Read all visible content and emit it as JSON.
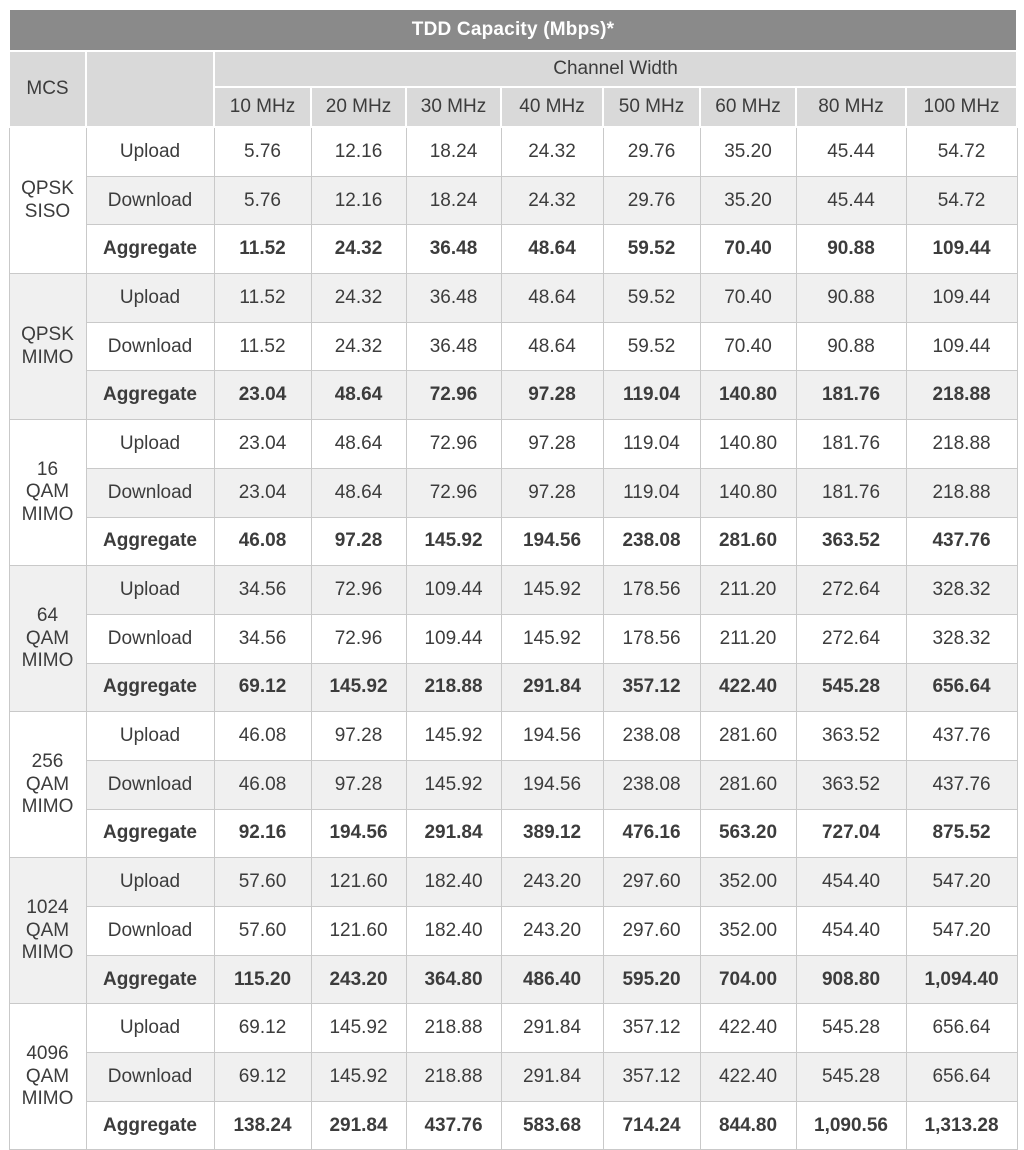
{
  "title": "TDD Capacity (Mbps)*",
  "table": {
    "mcs_header": "MCS",
    "channel_width_header": "Channel Width",
    "channel_columns": [
      "10 MHz",
      "20 MHz",
      "30 MHz",
      "40 MHz",
      "50 MHz",
      "60 MHz",
      "80 MHz",
      "100 MHz"
    ],
    "row_labels": {
      "upload": "Upload",
      "download": "Download",
      "aggregate": "Aggregate"
    },
    "groups": [
      {
        "mcs_lines": [
          "QPSK",
          "SISO"
        ],
        "upload": [
          "5.76",
          "12.16",
          "18.24",
          "24.32",
          "29.76",
          "35.20",
          "45.44",
          "54.72"
        ],
        "download": [
          "5.76",
          "12.16",
          "18.24",
          "24.32",
          "29.76",
          "35.20",
          "45.44",
          "54.72"
        ],
        "aggregate": [
          "11.52",
          "24.32",
          "36.48",
          "48.64",
          "59.52",
          "70.40",
          "90.88",
          "109.44"
        ]
      },
      {
        "mcs_lines": [
          "QPSK",
          "MIMO"
        ],
        "upload": [
          "11.52",
          "24.32",
          "36.48",
          "48.64",
          "59.52",
          "70.40",
          "90.88",
          "109.44"
        ],
        "download": [
          "11.52",
          "24.32",
          "36.48",
          "48.64",
          "59.52",
          "70.40",
          "90.88",
          "109.44"
        ],
        "aggregate": [
          "23.04",
          "48.64",
          "72.96",
          "97.28",
          "119.04",
          "140.80",
          "181.76",
          "218.88"
        ]
      },
      {
        "mcs_lines": [
          "16",
          "QAM",
          "MIMO"
        ],
        "upload": [
          "23.04",
          "48.64",
          "72.96",
          "97.28",
          "119.04",
          "140.80",
          "181.76",
          "218.88"
        ],
        "download": [
          "23.04",
          "48.64",
          "72.96",
          "97.28",
          "119.04",
          "140.80",
          "181.76",
          "218.88"
        ],
        "aggregate": [
          "46.08",
          "97.28",
          "145.92",
          "194.56",
          "238.08",
          "281.60",
          "363.52",
          "437.76"
        ]
      },
      {
        "mcs_lines": [
          "64",
          "QAM",
          "MIMO"
        ],
        "upload": [
          "34.56",
          "72.96",
          "109.44",
          "145.92",
          "178.56",
          "211.20",
          "272.64",
          "328.32"
        ],
        "download": [
          "34.56",
          "72.96",
          "109.44",
          "145.92",
          "178.56",
          "211.20",
          "272.64",
          "328.32"
        ],
        "aggregate": [
          "69.12",
          "145.92",
          "218.88",
          "291.84",
          "357.12",
          "422.40",
          "545.28",
          "656.64"
        ]
      },
      {
        "mcs_lines": [
          "256",
          "QAM",
          "MIMO"
        ],
        "upload": [
          "46.08",
          "97.28",
          "145.92",
          "194.56",
          "238.08",
          "281.60",
          "363.52",
          "437.76"
        ],
        "download": [
          "46.08",
          "97.28",
          "145.92",
          "194.56",
          "238.08",
          "281.60",
          "363.52",
          "437.76"
        ],
        "aggregate": [
          "92.16",
          "194.56",
          "291.84",
          "389.12",
          "476.16",
          "563.20",
          "727.04",
          "875.52"
        ]
      },
      {
        "mcs_lines": [
          "1024",
          "QAM",
          "MIMO"
        ],
        "upload": [
          "57.60",
          "121.60",
          "182.40",
          "243.20",
          "297.60",
          "352.00",
          "454.40",
          "547.20"
        ],
        "download": [
          "57.60",
          "121.60",
          "182.40",
          "243.20",
          "297.60",
          "352.00",
          "454.40",
          "547.20"
        ],
        "aggregate": [
          "115.20",
          "243.20",
          "364.80",
          "486.40",
          "595.20",
          "704.00",
          "908.80",
          "1,094.40"
        ]
      },
      {
        "mcs_lines": [
          "4096",
          "QAM",
          "MIMO"
        ],
        "upload": [
          "69.12",
          "145.92",
          "218.88",
          "291.84",
          "357.12",
          "422.40",
          "545.28",
          "656.64"
        ],
        "download": [
          "69.12",
          "145.92",
          "218.88",
          "291.84",
          "357.12",
          "422.40",
          "545.28",
          "656.64"
        ],
        "aggregate": [
          "138.24",
          "291.84",
          "437.76",
          "583.68",
          "714.24",
          "844.80",
          "1,090.56",
          "1,313.28"
        ]
      }
    ]
  },
  "colors": {
    "title_bar_bg": "#8a8a8a",
    "title_bar_text": "#ffffff",
    "header_bg": "#d9d9d9",
    "row_shaded_bg": "#f0f0f0",
    "row_plain_bg": "#ffffff",
    "cell_border": "#c9c9c9",
    "text": "#3c3c3c"
  }
}
